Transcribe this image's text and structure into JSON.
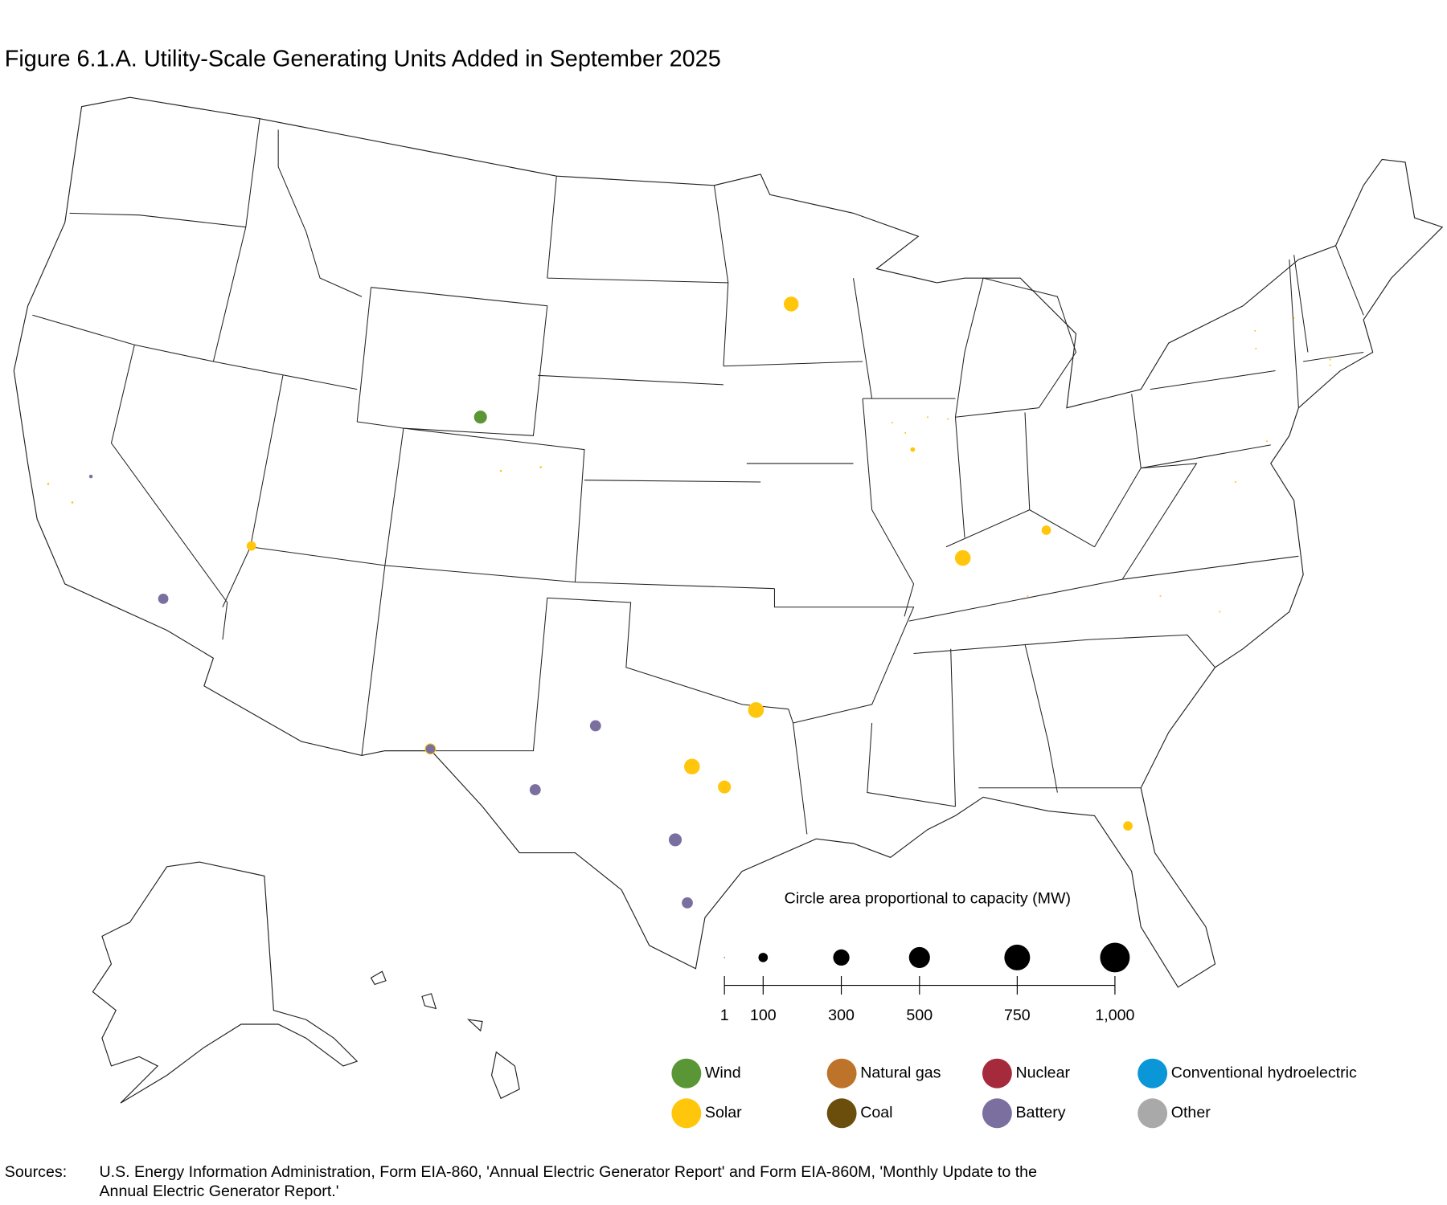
{
  "chart_data": {
    "type": "bubble-map",
    "title": "Figure 6.1.A. Utility-Scale Generating Units Added in September 2025",
    "size_title": "Circle area proportional to capacity (MW)",
    "size_ticks": [
      1,
      100,
      300,
      500,
      750,
      {
        "value": 1000,
        "label": "1,000"
      }
    ],
    "series": [
      {
        "name": "Wind",
        "color": "#5b9636",
        "values": [
          190
        ]
      },
      {
        "name": "Solar",
        "color": "#ffc60b",
        "values": [
          250,
          5,
          5,
          5,
          5,
          100,
          3,
          3,
          3,
          3,
          25,
          100,
          280,
          3,
          3,
          3,
          3,
          3,
          3,
          3,
          3,
          3,
          3,
          280,
          280,
          190,
          140,
          100
        ]
      },
      {
        "name": "Natural gas",
        "color": "#bd732a",
        "values": []
      },
      {
        "name": "Coal",
        "color": "#6b4e0b",
        "values": []
      },
      {
        "name": "Nuclear",
        "color": "#a52a3c",
        "values": []
      },
      {
        "name": "Battery",
        "color": "#7b6fa0",
        "values": [
          15,
          120,
          140,
          140,
          190,
          140,
          100
        ]
      },
      {
        "name": "Conventional hydroelectric",
        "color": "#0b96d8",
        "values": []
      },
      {
        "name": "Other",
        "color": "#a9a9a9",
        "values": []
      }
    ],
    "sources_label": "Sources:",
    "source_lines": [
      "U.S. Energy Information Administration, Form EIA-860, 'Annual Electric Generator Report' and Form EIA-860M, 'Monthly Update to the",
      "Annual Electric Generator Report.'"
    ]
  }
}
